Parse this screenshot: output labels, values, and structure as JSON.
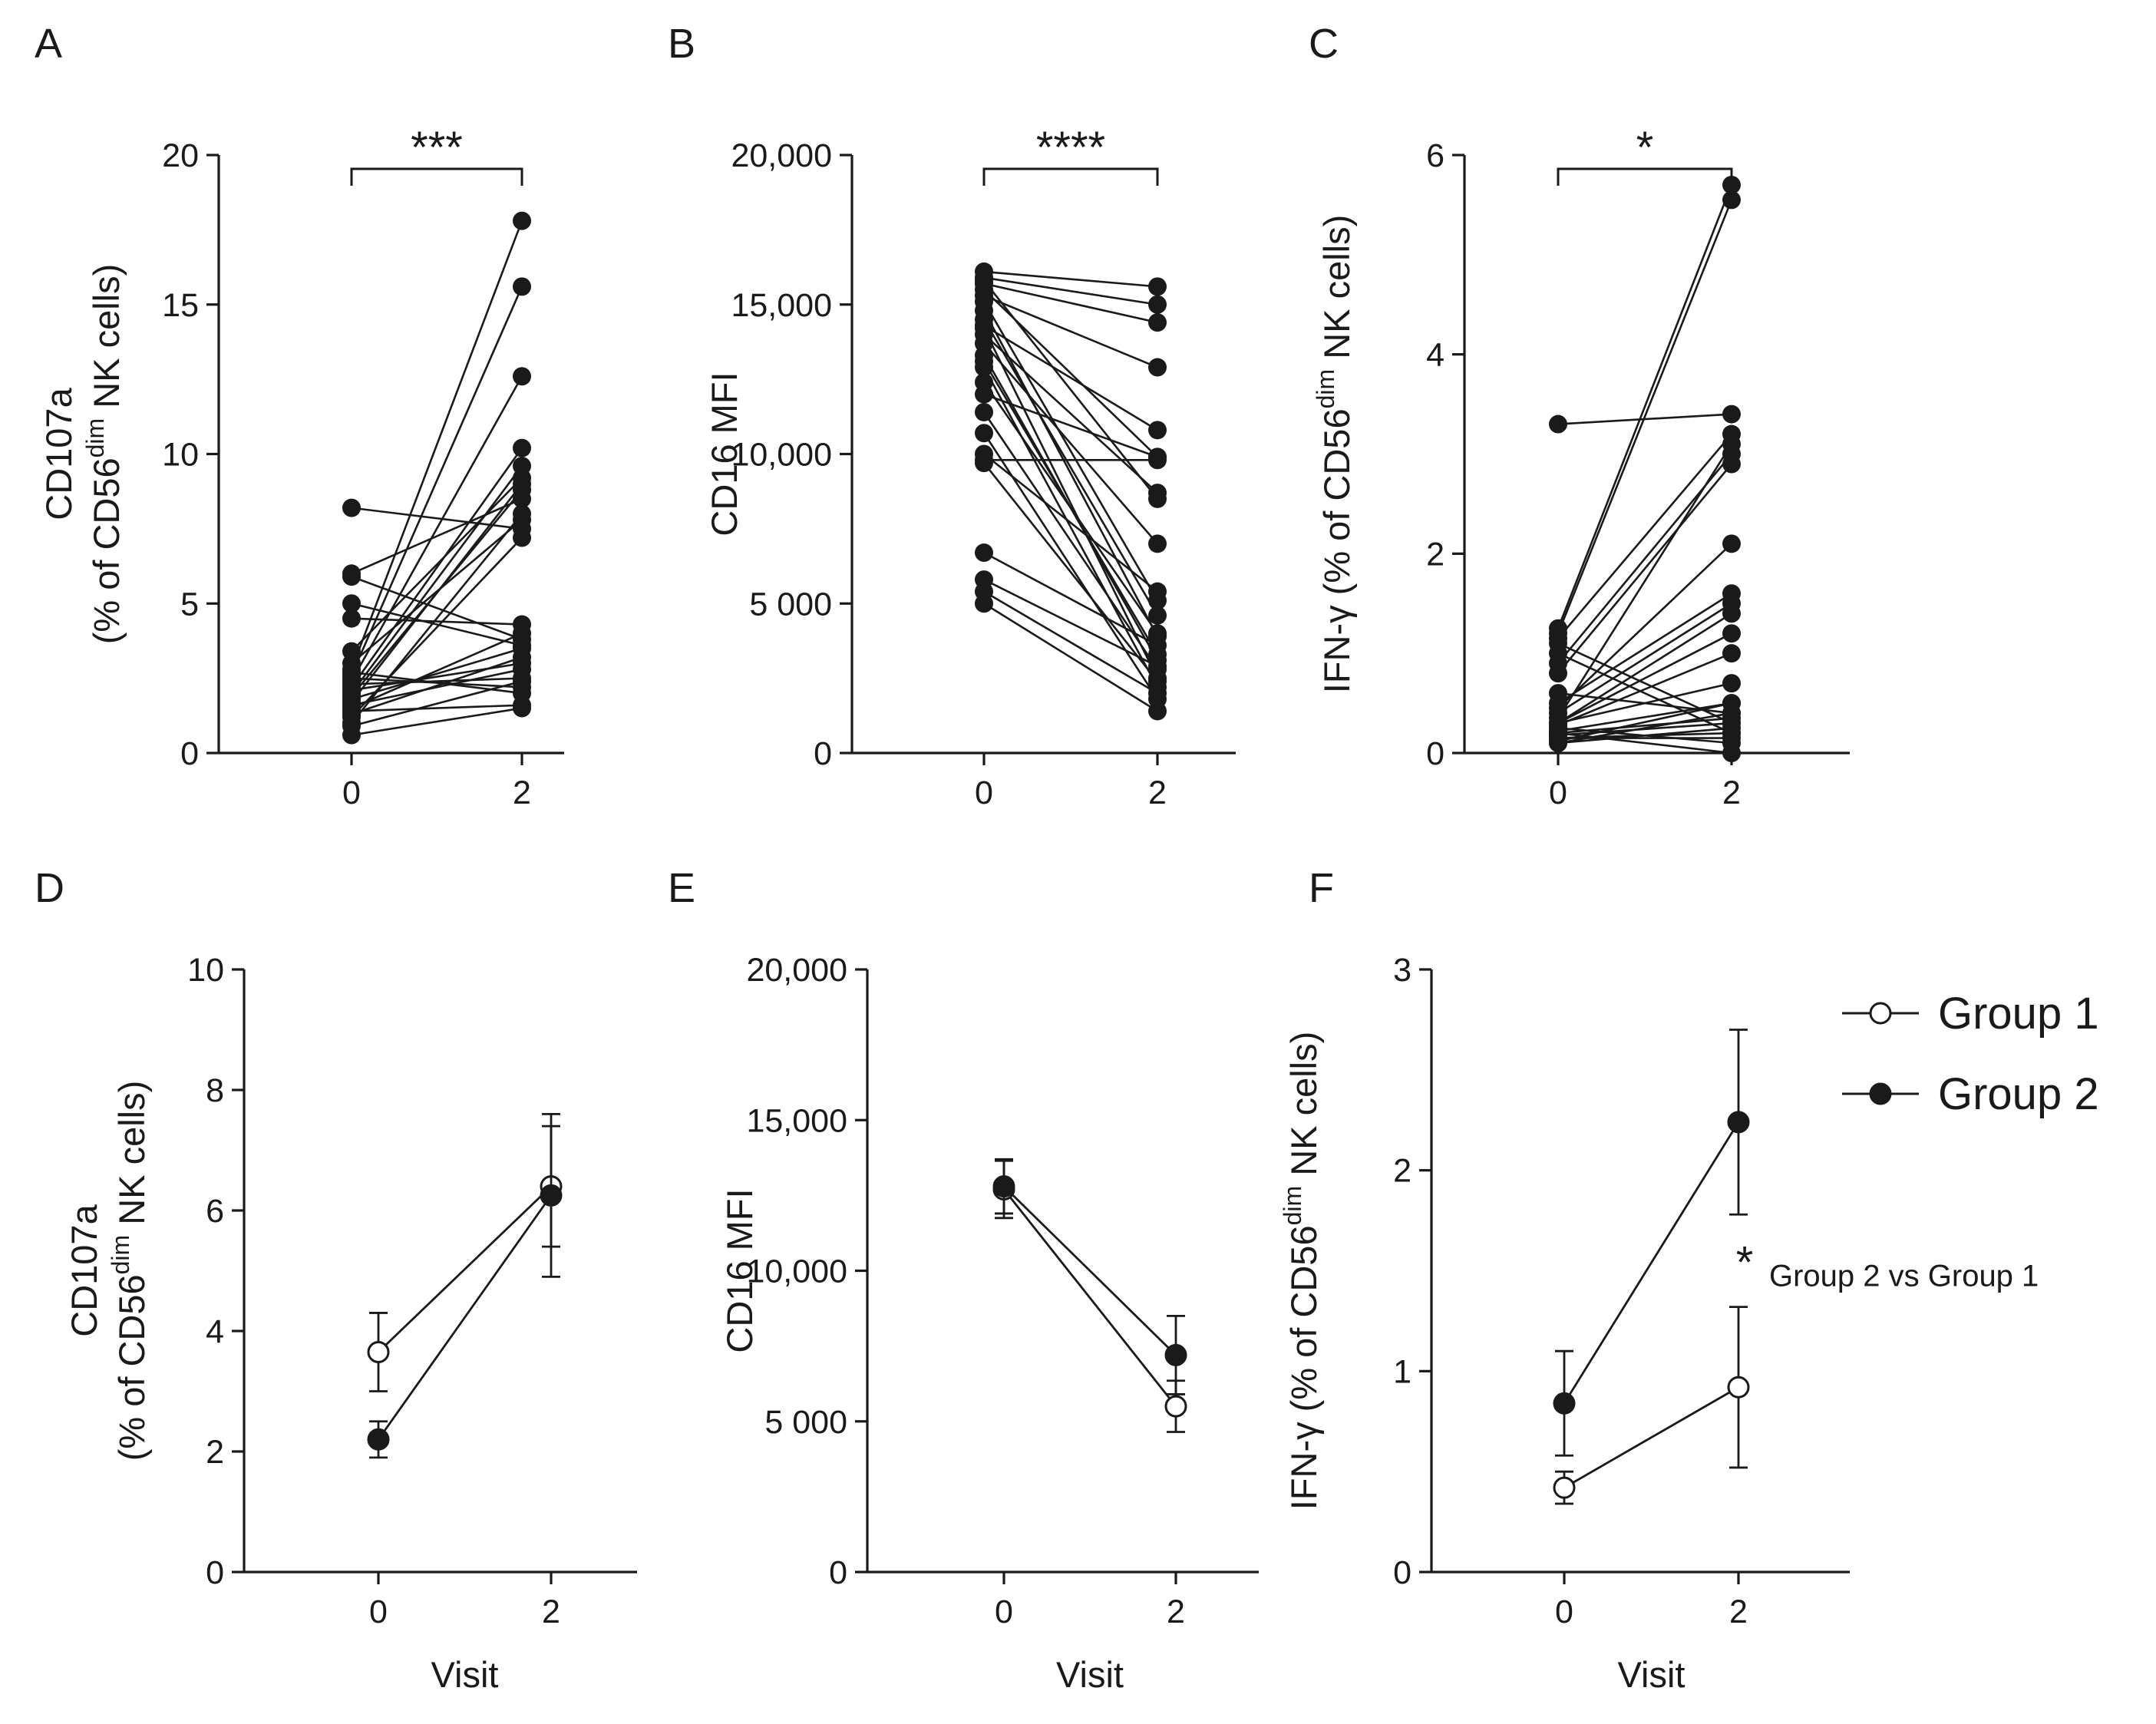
{
  "chart_data": [
    {
      "panel": "A",
      "type": "paired-line",
      "ylabel_line1": "CD107a",
      "ylabel_pre": "(% of CD56",
      "ylabel_sup": "dim",
      "ylabel_post": " NK cells)",
      "xticks": [
        "0",
        "2"
      ],
      "yticks": [
        "0",
        "5",
        "10",
        "15",
        "20"
      ],
      "ylim": [
        0,
        20
      ],
      "significance": "***",
      "pairs": [
        [
          8.2,
          7.5
        ],
        [
          6.0,
          8.5
        ],
        [
          5.0,
          3.6
        ],
        [
          4.5,
          4.3
        ],
        [
          3.4,
          9.2
        ],
        [
          3.0,
          7.8
        ],
        [
          2.8,
          17.8
        ],
        [
          2.6,
          15.6
        ],
        [
          2.5,
          2.2
        ],
        [
          2.4,
          12.6
        ],
        [
          2.3,
          2.5
        ],
        [
          2.2,
          10.2
        ],
        [
          2.1,
          3.0
        ],
        [
          2.0,
          9.6
        ],
        [
          1.9,
          8.8
        ],
        [
          1.8,
          3.5
        ],
        [
          1.7,
          9.0
        ],
        [
          1.6,
          2.8
        ],
        [
          1.5,
          4.0
        ],
        [
          1.4,
          1.6
        ],
        [
          1.2,
          7.2
        ],
        [
          1.0,
          8.0
        ],
        [
          0.9,
          2.4
        ],
        [
          0.6,
          1.5
        ],
        [
          5.9,
          3.8
        ],
        [
          2.7,
          2.0
        ],
        [
          1.3,
          3.2
        ]
      ]
    },
    {
      "panel": "B",
      "type": "paired-line",
      "ylabel": "CD16 MFI",
      "xticks": [
        "0",
        "2"
      ],
      "yticks": [
        "0",
        "5 000",
        "10,000",
        "15,000",
        "20,000"
      ],
      "ylim": [
        0,
        20000
      ],
      "significance": "****",
      "pairs": [
        [
          16100,
          15600
        ],
        [
          15900,
          15000
        ],
        [
          15700,
          14400
        ],
        [
          15500,
          9900
        ],
        [
          15300,
          12900
        ],
        [
          15100,
          5100
        ],
        [
          14800,
          3900
        ],
        [
          14500,
          4600
        ],
        [
          14300,
          10800
        ],
        [
          14000,
          8700
        ],
        [
          13700,
          7000
        ],
        [
          13300,
          3100
        ],
        [
          12900,
          2200
        ],
        [
          12400,
          4000
        ],
        [
          12000,
          9900
        ],
        [
          11400,
          2800
        ],
        [
          10700,
          1800
        ],
        [
          10000,
          5400
        ],
        [
          9700,
          2400
        ],
        [
          9800,
          9800
        ],
        [
          6700,
          3600
        ],
        [
          5800,
          2900
        ],
        [
          5400,
          2000
        ],
        [
          5000,
          1400
        ],
        [
          15800,
          8500
        ],
        [
          14200,
          2500
        ],
        [
          13100,
          3300
        ]
      ]
    },
    {
      "panel": "C",
      "type": "paired-line",
      "ylabel_pre": "IFN-γ (% of CD56",
      "ylabel_sup": "dim",
      "ylabel_post": " NK cells)",
      "xticks": [
        "0",
        "2"
      ],
      "yticks": [
        "0",
        "2",
        "4",
        "6"
      ],
      "ylim": [
        0,
        6
      ],
      "significance": "*",
      "pairs": [
        [
          3.3,
          3.4
        ],
        [
          1.25,
          5.7
        ],
        [
          1.2,
          5.55
        ],
        [
          1.15,
          3.2
        ],
        [
          1.1,
          0.3
        ],
        [
          1.0,
          0.2
        ],
        [
          0.9,
          3.0
        ],
        [
          0.8,
          2.9
        ],
        [
          0.6,
          0.4
        ],
        [
          0.5,
          1.6
        ],
        [
          0.45,
          2.1
        ],
        [
          0.4,
          1.5
        ],
        [
          0.35,
          3.1
        ],
        [
          0.3,
          1.4
        ],
        [
          0.3,
          0.7
        ],
        [
          0.28,
          1.0
        ],
        [
          0.25,
          0.1
        ],
        [
          0.22,
          0.5
        ],
        [
          0.2,
          0.0
        ],
        [
          0.18,
          0.3
        ],
        [
          0.15,
          0.2
        ],
        [
          0.12,
          0.5
        ],
        [
          0.1,
          0.25
        ],
        [
          0.1,
          0.4
        ],
        [
          0.3,
          1.2
        ],
        [
          0.2,
          0.35
        ],
        [
          0.15,
          0.15
        ]
      ]
    },
    {
      "panel": "D",
      "type": "line-errorbar",
      "ylabel_line1": "CD107a",
      "ylabel_pre": "(% of CD56",
      "ylabel_sup": "dim",
      "ylabel_post": " NK cells)",
      "xlabel": "Visit",
      "xticks": [
        "0",
        "2"
      ],
      "yticks": [
        "0",
        "2",
        "4",
        "6",
        "8",
        "10"
      ],
      "ylim": [
        0,
        10
      ],
      "series": [
        {
          "name": "Group 1",
          "values": [
            3.65,
            6.4
          ],
          "err": [
            0.65,
            1.0
          ]
        },
        {
          "name": "Group 2",
          "values": [
            2.2,
            6.25
          ],
          "err": [
            0.3,
            1.35
          ]
        }
      ]
    },
    {
      "panel": "E",
      "type": "line-errorbar",
      "ylabel": "CD16 MFI",
      "xlabel": "Visit",
      "xticks": [
        "0",
        "2"
      ],
      "yticks": [
        "0",
        "5 000",
        "10,000",
        "15,000",
        "20,000"
      ],
      "ylim": [
        0,
        20000
      ],
      "series": [
        {
          "name": "Group 1",
          "values": [
            12700,
            5500
          ],
          "err": [
            950,
            850
          ]
        },
        {
          "name": "Group 2",
          "values": [
            12800,
            7200
          ],
          "err": [
            900,
            1300
          ]
        }
      ]
    },
    {
      "panel": "F",
      "type": "line-errorbar",
      "ylabel_pre": "IFN-γ (% of CD56",
      "ylabel_sup": "dim",
      "ylabel_post": " NK cells)",
      "xlabel": "Visit",
      "xticks": [
        "0",
        "2"
      ],
      "yticks": [
        "0",
        "1",
        "2",
        "3"
      ],
      "ylim": [
        0,
        3
      ],
      "annotation_star": "*",
      "annotation_text": "Group 2 vs Group 1",
      "series": [
        {
          "name": "Group 1",
          "values": [
            0.42,
            0.92
          ],
          "err": [
            0.08,
            0.4
          ]
        },
        {
          "name": "Group 2",
          "values": [
            0.84,
            2.24
          ],
          "err": [
            0.26,
            0.46
          ]
        }
      ]
    }
  ],
  "legend": [
    "Group 1",
    "Group 2"
  ],
  "colors": {
    "ink": "#1a1a1a",
    "open_fill": "#ffffff"
  }
}
